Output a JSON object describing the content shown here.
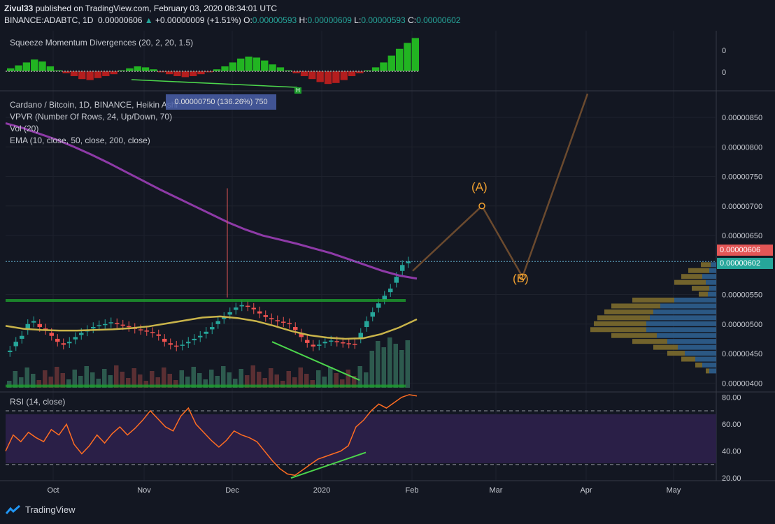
{
  "header": {
    "author": "Zivul33",
    "published": "published on TradingView.com, February 03, 2020 08:34:01 UTC",
    "symbol": "BINANCE:ADABTC, 1D",
    "price": "0.00000606",
    "change_arrow": "▲",
    "change": "+0.00000009 (+1.51%)",
    "o_label": "O:",
    "o_val": "0.00000593",
    "h_label": "H:",
    "h_val": "0.00000609",
    "l_label": "L:",
    "l_val": "0.00000593",
    "c_label": "C:",
    "c_val": "0.00000602"
  },
  "indicators": {
    "squeeze": "Squeeze Momentum Divergences (20, 2, 20, 1.5)",
    "main_title": "Cardano / Bitcoin, 1D, BINANCE, Heikin Ashi",
    "vpvr": "VPVR (Number Of Rows, 24, Up/Down, 70)",
    "vol": "Vol (20)",
    "ema": "EMA (10, close, 50, close, 200, close)",
    "rsi": "RSI (14, close)"
  },
  "measure_tooltip": "0.00000750 (136.26%) 750",
  "wave_labels": {
    "a": "(A)",
    "b": "(B)"
  },
  "squeeze_div_badge": "H",
  "price_badges": {
    "last": "0.00000606",
    "close": "0.00000602"
  },
  "footer": {
    "brand": "TradingView",
    "logo_icon": "tradingview-logo-icon"
  },
  "colors": {
    "background": "#131722",
    "bull": "#26a69a",
    "bear": "#ef5350",
    "ema200": "#8e3aa7",
    "ema50": "#c9b44a",
    "rsi": "#ff6d22",
    "support": "#1e9e2e",
    "divergence": "#4cd64c",
    "projection": "#6b4a2e",
    "rsi_band": "#2a1f47",
    "badge_last": "#e35656",
    "badge_close": "#26a69a"
  },
  "chart_data": [
    {
      "type": "bar",
      "title": "Squeeze Momentum Divergences (20, 2, 20, 1.5)",
      "y_ticks": [
        "0",
        "0"
      ],
      "description_values": "momentum histogram: green above zero, red below zero",
      "values": [
        0.3,
        0.6,
        0.9,
        1.2,
        1.0,
        0.5,
        0.1,
        -0.2,
        -0.5,
        -0.8,
        -0.9,
        -0.7,
        -0.5,
        -0.3,
        0.1,
        0.3,
        0.5,
        0.4,
        0.2,
        -0.1,
        -0.3,
        -0.5,
        -0.6,
        -0.5,
        -0.3,
        -0.1,
        0.2,
        0.5,
        0.9,
        1.3,
        1.5,
        1.4,
        1.1,
        0.7,
        0.4,
        0.1,
        -0.2,
        -0.5,
        -0.8,
        -1.1,
        -1.3,
        -1.2,
        -0.9,
        -0.5,
        -0.2,
        0.1,
        0.4,
        0.9,
        1.6,
        2.3,
        2.9,
        3.4
      ]
    },
    {
      "type": "candlestick",
      "title": "Cardano / Bitcoin, 1D, BINANCE, Heikin Ashi",
      "x_ticks": [
        "Oct",
        "Nov",
        "Dec",
        "2020",
        "Feb",
        "Mar",
        "Apr",
        "May"
      ],
      "y_ticks": [
        "0.00000850",
        "0.00000800",
        "0.00000750",
        "0.00000700",
        "0.00000650",
        "0.00000550",
        "0.00000500",
        "0.00000450",
        "0.00000400"
      ],
      "ylim": [
        3.85e-06,
        8.95e-06
      ],
      "close": [
        455,
        470,
        480,
        500,
        505,
        495,
        490,
        480,
        470,
        465,
        470,
        478,
        485,
        490,
        495,
        498,
        500,
        503,
        500,
        498,
        495,
        492,
        490,
        488,
        485,
        480,
        470,
        465,
        462,
        465,
        470,
        475,
        480,
        487,
        495,
        505,
        512,
        520,
        528,
        532,
        530,
        525,
        518,
        512,
        508,
        505,
        503,
        500,
        490,
        478,
        468,
        462,
        465,
        470,
        472,
        470,
        468,
        467,
        466,
        485,
        505,
        520,
        535,
        548,
        560,
        580,
        600,
        606
      ],
      "ema200": [
        840,
        832,
        822,
        812,
        800,
        787,
        773,
        758,
        743,
        728,
        714,
        700,
        686,
        672,
        660,
        650,
        643,
        636,
        628,
        620,
        610,
        600,
        590,
        582,
        577
      ],
      "ema50": [
        497,
        492,
        490,
        489,
        489,
        490,
        491,
        493,
        496,
        501,
        506,
        511,
        513,
        510,
        505,
        497,
        488,
        481,
        477,
        475,
        476,
        483,
        494,
        508
      ],
      "projection": [
        {
          "label": "",
          "x": "2020-02-01",
          "y": 5.9e-06
        },
        {
          "label": "(A)",
          "x": "2020-02-23",
          "y": 7e-06
        },
        {
          "label": "(B)",
          "x": "2020-03-10",
          "y": 5.8e-06
        },
        {
          "label": "",
          "x": "2020-04-01",
          "y": 8.9e-06
        }
      ],
      "support_levels": [
        5.4e-06,
        3.95e-06
      ],
      "last_price": 6.06e-06,
      "close_price": 6.02e-06
    },
    {
      "type": "line",
      "title": "RSI (14, close)",
      "y_ticks": [
        "80.00",
        "60.00",
        "40.00",
        "20.00"
      ],
      "ylim": [
        18,
        84
      ],
      "bands": [
        30,
        70
      ],
      "values": [
        40,
        52,
        47,
        54,
        50,
        47,
        56,
        52,
        60,
        45,
        38,
        44,
        52,
        46,
        53,
        58,
        52,
        57,
        63,
        70,
        64,
        58,
        55,
        66,
        72,
        60,
        54,
        48,
        43,
        48,
        55,
        52,
        50,
        47,
        40,
        33,
        27,
        23,
        22,
        26,
        30,
        34,
        36,
        38,
        40,
        44,
        58,
        63,
        70,
        75,
        72,
        76,
        80,
        82,
        81
      ],
      "divergence_line": [
        [
          23,
          20
        ],
        [
          38,
          39
        ]
      ]
    }
  ]
}
